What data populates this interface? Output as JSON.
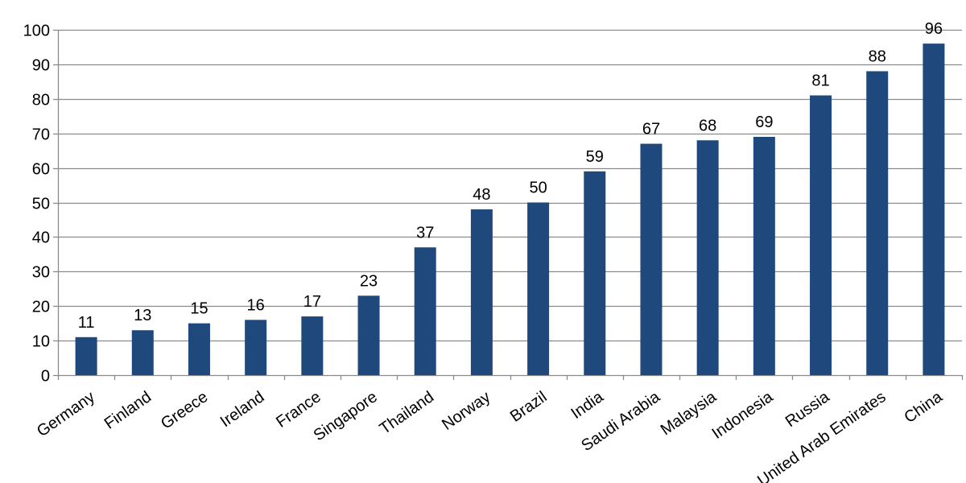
{
  "chart_data": {
    "type": "bar",
    "categories": [
      "Germany",
      "Finland",
      "Greece",
      "Ireland",
      "France",
      "Singapore",
      "Thailand",
      "Norway",
      "Brazil",
      "India",
      "Saudi Arabia",
      "Malaysia",
      "Indonesia",
      "Russia",
      "United Arab Emirates",
      "China"
    ],
    "values": [
      11,
      13,
      15,
      16,
      17,
      23,
      37,
      48,
      50,
      59,
      67,
      68,
      69,
      81,
      88,
      96
    ],
    "data_labels": [
      "11",
      "13",
      "15",
      "16",
      "17",
      "23",
      "37",
      "48",
      "50",
      "59",
      "67",
      "68",
      "69",
      "81",
      "88",
      "96"
    ],
    "title": "",
    "xlabel": "",
    "ylabel": "",
    "ylim": [
      0,
      100
    ],
    "yticks": [
      0,
      10,
      20,
      30,
      40,
      50,
      60,
      70,
      80,
      90,
      100
    ],
    "grid": true,
    "legend": "none",
    "colors": {
      "bar": "#1f497d",
      "grid": "#8a8a8a",
      "axis": "#8a8a8a",
      "text": "#000000"
    }
  }
}
